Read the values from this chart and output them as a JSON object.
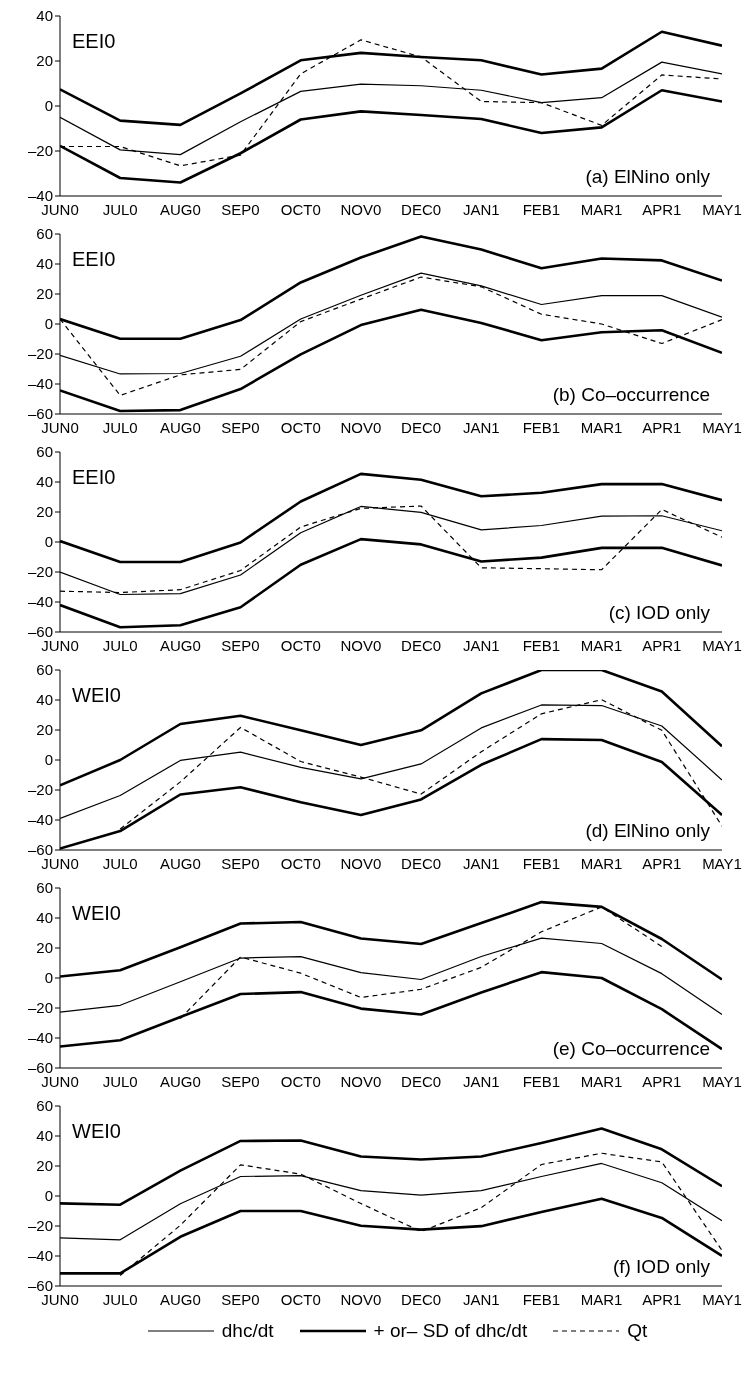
{
  "chart_data": [
    {
      "type": "line",
      "categories": [
        "JUN0",
        "JUL0",
        "AUG0",
        "SEP0",
        "OCT0",
        "NOV0",
        "DEC0",
        "JAN1",
        "FEB1",
        "MAR1",
        "APR1",
        "MAY1"
      ],
      "ylim": [
        -40,
        40
      ],
      "yticks": [
        {
          "value": -40,
          "label": "–40"
        },
        {
          "value": -20,
          "label": "–20"
        },
        0,
        20,
        40
      ],
      "legend": false,
      "marker": "none",
      "annotations": [
        "EEI0",
        "(a) ElNino only"
      ],
      "series": [
        {
          "color": "#000000",
          "line_style": "solid",
          "values": [
            -5,
            -19.5,
            -21.6,
            -7,
            6.5,
            9.7,
            9,
            7,
            1.5,
            3.7,
            19.5,
            14.3
          ]
        },
        {
          "color": "#000000",
          "line_style": "solid",
          "values": [
            7.4,
            -6.5,
            -8.4,
            5.6,
            20.3,
            23.6,
            21.8,
            20.3,
            14,
            16.6,
            33,
            26.8
          ]
        },
        {
          "color": "#000000",
          "line_style": "solid",
          "values": [
            -17.7,
            -32,
            -34,
            -21,
            -6,
            -2.4,
            -4,
            -5.8,
            -12,
            -9.5,
            7,
            2
          ]
        },
        {
          "color": "#000000",
          "line_style": "dashed",
          "values": [
            -18,
            -18,
            -26.6,
            -21.8,
            14.3,
            29.4,
            21.8,
            2,
            1.5,
            -8.6,
            13.8,
            12
          ]
        }
      ]
    },
    {
      "type": "line",
      "categories": [
        "JUN0",
        "JUL0",
        "AUG0",
        "SEP0",
        "OCT0",
        "NOV0",
        "DEC0",
        "JAN1",
        "FEB1",
        "MAR1",
        "APR1",
        "MAY1"
      ],
      "ylim": [
        -60,
        60
      ],
      "yticks": [
        {
          "value": -60,
          "label": "–60"
        },
        {
          "value": -40,
          "label": "–40"
        },
        {
          "value": -20,
          "label": "–20"
        },
        0,
        20,
        40,
        60
      ],
      "legend": false,
      "marker": "none",
      "annotations": [
        "EEI0",
        "(b) Co–occurrence"
      ],
      "series": [
        {
          "color": "#000000",
          "line_style": "solid",
          "values": [
            -20.9,
            -33.3,
            -33,
            -21.5,
            3.3,
            19.2,
            33.9,
            25.4,
            13,
            18.9,
            18.9,
            4.6
          ]
        },
        {
          "color": "#000000",
          "line_style": "solid",
          "values": [
            3.3,
            -9.8,
            -9.8,
            2.6,
            27.7,
            44.3,
            58.4,
            49.6,
            37.2,
            43.7,
            42.4,
            29
          ]
        },
        {
          "color": "#000000",
          "line_style": "solid",
          "values": [
            -44.3,
            -58,
            -57.4,
            -43.4,
            -20.2,
            -0.7,
            9.5,
            0.7,
            -10.8,
            -5.5,
            -4.2,
            -19.2
          ]
        },
        {
          "color": "#000000",
          "line_style": "dashed",
          "values": [
            3.3,
            -47.6,
            -33.9,
            -30.3,
            1.6,
            16.6,
            31.3,
            24.8,
            6.5,
            0,
            -13,
            2.9
          ]
        }
      ]
    },
    {
      "type": "line",
      "categories": [
        "JUN0",
        "JUL0",
        "AUG0",
        "SEP0",
        "OCT0",
        "NOV0",
        "DEC0",
        "JAN1",
        "FEB1",
        "MAR1",
        "APR1",
        "MAY1"
      ],
      "ylim": [
        -60,
        60
      ],
      "yticks": [
        {
          "value": -60,
          "label": "–60"
        },
        {
          "value": -40,
          "label": "–40"
        },
        {
          "value": -20,
          "label": "–20"
        },
        0,
        20,
        40,
        60
      ],
      "legend": false,
      "marker": "none",
      "annotations": [
        "EEI0",
        "(c) IOD only"
      ],
      "series": [
        {
          "color": "#000000",
          "line_style": "solid",
          "values": [
            -20,
            -35,
            -34.4,
            -22,
            6.2,
            23.7,
            19.8,
            8.1,
            11,
            17.2,
            17.5,
            7.5
          ]
        },
        {
          "color": "#000000",
          "line_style": "solid",
          "values": [
            0.6,
            -13.3,
            -13.3,
            -0.3,
            27,
            45.4,
            41.5,
            30.5,
            32.8,
            38.6,
            38.6,
            27.9
          ]
        },
        {
          "color": "#000000",
          "line_style": "solid",
          "values": [
            -42,
            -56.8,
            -55.5,
            -43.5,
            -15.2,
            1.9,
            -1.6,
            -13,
            -10.4,
            -3.9,
            -3.9,
            -15.6
          ]
        },
        {
          "color": "#000000",
          "line_style": "dashed",
          "values": [
            -32.8,
            -33.7,
            -31.8,
            -19,
            10,
            22.4,
            24,
            -17.2,
            -17.8,
            -18.5,
            21.7,
            3.2
          ]
        }
      ]
    },
    {
      "type": "line",
      "categories": [
        "JUN0",
        "JUL0",
        "AUG0",
        "SEP0",
        "OCT0",
        "NOV0",
        "DEC0",
        "JAN1",
        "FEB1",
        "MAR1",
        "APR1",
        "MAY1"
      ],
      "ylim": [
        -60,
        60
      ],
      "yticks": [
        {
          "value": -60,
          "label": "–60"
        },
        {
          "value": -40,
          "label": "–40"
        },
        {
          "value": -20,
          "label": "–20"
        },
        0,
        20,
        40,
        60
      ],
      "legend": false,
      "marker": "none",
      "annotations": [
        "WEI0",
        "(d) ElNino only"
      ],
      "series": [
        {
          "color": "#000000",
          "line_style": "solid",
          "values": [
            -38.9,
            -23.7,
            -0.3,
            5.2,
            -4.9,
            -12.6,
            -2.6,
            21.4,
            36.7,
            36.3,
            22.7,
            -13.3
          ]
        },
        {
          "color": "#000000",
          "line_style": "solid",
          "values": [
            -16.9,
            0,
            24,
            29.5,
            19.8,
            10,
            19.8,
            44.4,
            60,
            60,
            45.7,
            9.1
          ]
        },
        {
          "color": "#000000",
          "line_style": "solid",
          "values": [
            -59,
            -47.4,
            -23,
            -18.2,
            -28.2,
            -36.7,
            -26.3,
            -3.2,
            13.9,
            13.3,
            -1.3,
            -36.7
          ]
        },
        {
          "color": "#000000",
          "line_style": "dashed",
          "values": [
            null,
            -46,
            -14.6,
            21.7,
            -1,
            -11.4,
            -22.7,
            5.5,
            30.8,
            40.2,
            19.8,
            -44.1
          ]
        }
      ]
    },
    {
      "type": "line",
      "categories": [
        "JUN0",
        "JUL0",
        "AUG0",
        "SEP0",
        "OCT0",
        "NOV0",
        "DEC0",
        "JAN1",
        "FEB1",
        "MAR1",
        "APR1",
        "MAY1"
      ],
      "ylim": [
        -60,
        60
      ],
      "yticks": [
        {
          "value": -60,
          "label": "–60"
        },
        {
          "value": -40,
          "label": "–40"
        },
        {
          "value": -20,
          "label": "–20"
        },
        0,
        20,
        40,
        60
      ],
      "legend": false,
      "marker": "none",
      "annotations": [
        "WEI0",
        "(e) Co–occurrence"
      ],
      "series": [
        {
          "color": "#000000",
          "line_style": "solid",
          "values": [
            -22.7,
            -18.2,
            -2.5,
            13.3,
            14.3,
            3.6,
            -1,
            14.3,
            26.6,
            23,
            2.9,
            -24.3
          ]
        },
        {
          "color": "#000000",
          "line_style": "solid",
          "values": [
            1,
            5.2,
            20.5,
            36.3,
            37.3,
            26.3,
            22.7,
            36.6,
            50.6,
            47.4,
            26,
            -1
          ]
        },
        {
          "color": "#000000",
          "line_style": "solid",
          "values": [
            -45.7,
            -41.5,
            -26,
            -10.7,
            -9.4,
            -20.4,
            -24.3,
            -9.7,
            3.9,
            0,
            -20.8,
            -47.4
          ]
        },
        {
          "color": "#000000",
          "line_style": "dashed",
          "values": [
            null,
            null,
            -27,
            14,
            3.2,
            -13,
            -7.5,
            7.1,
            30.8,
            47.4,
            21,
            null
          ]
        }
      ]
    },
    {
      "type": "line",
      "categories": [
        "JUN0",
        "JUL0",
        "AUG0",
        "SEP0",
        "OCT0",
        "NOV0",
        "DEC0",
        "JAN1",
        "FEB1",
        "MAR1",
        "APR1",
        "MAY1"
      ],
      "ylim": [
        -60,
        60
      ],
      "yticks": [
        {
          "value": -60,
          "label": "–60"
        },
        {
          "value": -40,
          "label": "–40"
        },
        {
          "value": -20,
          "label": "–20"
        },
        0,
        20,
        40,
        60
      ],
      "legend": "bottom",
      "marker": "none",
      "annotations": [
        "WEI0",
        "(f) IOD only"
      ],
      "series": [
        {
          "name": "dhc/dt",
          "color": "#000000",
          "line_style": "solid",
          "values": [
            -27.9,
            -29.2,
            -5.2,
            13,
            13.6,
            3.6,
            0.6,
            3.6,
            13,
            21.7,
            8.8,
            -16.5
          ]
        },
        {
          "name": "+ or– SD of dhc/dt",
          "color": "#000000",
          "line_style": "solid",
          "values": [
            -4.9,
            -5.8,
            16.9,
            36.7,
            37,
            26.3,
            24.3,
            26.3,
            35.4,
            45,
            31.1,
            6.5
          ]
        },
        {
          "color": "#000000",
          "line_style": "solid",
          "values": [
            -51.6,
            -51.6,
            -27.2,
            -10,
            -10,
            -19.8,
            -22.4,
            -20.1,
            -10.7,
            -1.9,
            -14.6,
            -39.9
          ]
        },
        {
          "name": "Qt",
          "color": "#000000",
          "line_style": "dashed",
          "values": [
            null,
            -53,
            -19.5,
            20.8,
            14.6,
            -5,
            -23.7,
            -7.8,
            21,
            28.5,
            22.7,
            -36.3
          ]
        }
      ]
    }
  ]
}
